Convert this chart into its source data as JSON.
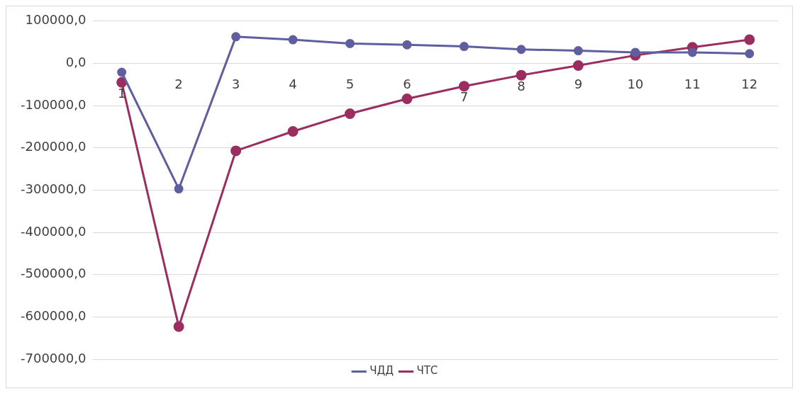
{
  "chart_data": {
    "type": "line",
    "categories": [
      "1",
      "2",
      "3",
      "4",
      "5",
      "6",
      "7",
      "8",
      "9",
      "10",
      "11",
      "12"
    ],
    "series": [
      {
        "name": "ЧДД",
        "color": "#5f5f9f",
        "values": [
          -21000,
          -297000,
          63000,
          56000,
          47000,
          44000,
          40000,
          33000,
          30000,
          26000,
          26000,
          23000
        ]
      },
      {
        "name": "ЧТС",
        "color": "#9b2d5f",
        "values": [
          -45000,
          -623000,
          -207000,
          -161000,
          -119000,
          -84000,
          -54000,
          -28000,
          -5000,
          19000,
          38000,
          56000
        ]
      }
    ],
    "ylim": [
      -700000,
      100000
    ],
    "yticks": [
      {
        "value": -700000,
        "label": "-700000,0"
      },
      {
        "value": -600000,
        "label": "-600000,0"
      },
      {
        "value": -500000,
        "label": "-500000,0"
      },
      {
        "value": -400000,
        "label": "-400000,0"
      },
      {
        "value": -300000,
        "label": "-300000,0"
      },
      {
        "value": -200000,
        "label": "-200000,0"
      },
      {
        "value": -100000,
        "label": "-100000,0"
      },
      {
        "value": 0,
        "label": "0,0"
      },
      {
        "value": 100000,
        "label": "100000,0"
      }
    ],
    "grid": "y",
    "legend": "bottom",
    "marker": "circle",
    "line_style": "solid"
  }
}
